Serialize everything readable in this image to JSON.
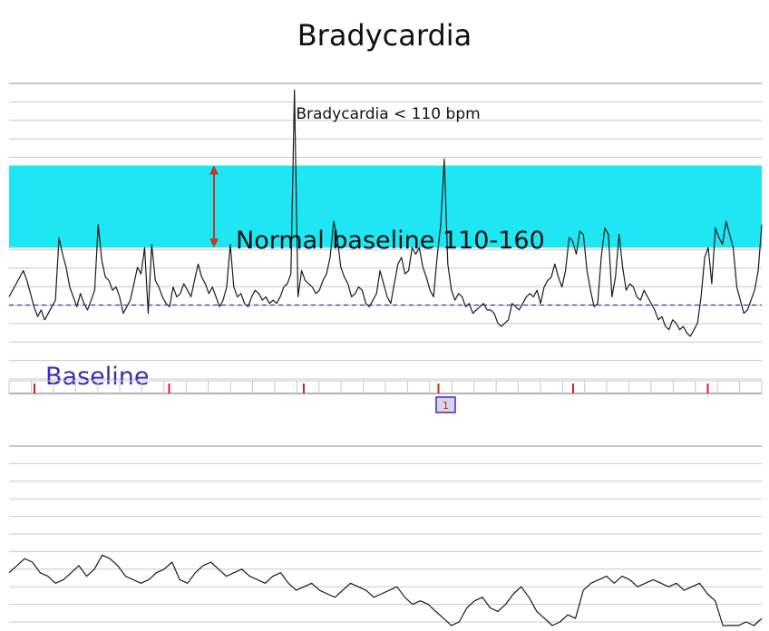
{
  "title": "Bradycardia",
  "colors": {
    "band": "#1ee6f2",
    "arrow": "#c0392b",
    "baseline_line": "#3a2fb0",
    "trace": "#1a1a1a",
    "grid": "#c8c8c8",
    "tick": "#d62020"
  },
  "chart_data": [
    {
      "type": "line",
      "title": "Bradycardia < 110 bpm",
      "band": {
        "low": 110,
        "high": 160,
        "label": "Normal baseline 110-160"
      },
      "baseline": {
        "value": 75,
        "label": "Baseline"
      },
      "marker_label": "1",
      "ylim": [
        30,
        210
      ],
      "grid": true,
      "series": [
        {
          "values": [
            80,
            84,
            88,
            92,
            96,
            90,
            82,
            74,
            68,
            72,
            66,
            70,
            74,
            78,
            116,
            106,
            98,
            86,
            80,
            74,
            82,
            76,
            72,
            78,
            84,
            124,
            102,
            92,
            90,
            84,
            86,
            80,
            70,
            74,
            78,
            88,
            98,
            94,
            110,
            70,
            112,
            90,
            86,
            80,
            76,
            74,
            86,
            80,
            82,
            88,
            84,
            80,
            90,
            100,
            92,
            88,
            82,
            86,
            80,
            74,
            78,
            86,
            112,
            86,
            80,
            82,
            76,
            74,
            80,
            84,
            82,
            78,
            80,
            76,
            78,
            76,
            80,
            86,
            88,
            94,
            206,
            80,
            96,
            90,
            88,
            86,
            82,
            84,
            90,
            94,
            104,
            126,
            116,
            98,
            92,
            88,
            80,
            82,
            86,
            84,
            76,
            74,
            78,
            82,
            96,
            88,
            80,
            76,
            88,
            100,
            104,
            94,
            96,
            110,
            106,
            110,
            98,
            92,
            84,
            80,
            104,
            124,
            164,
            100,
            84,
            78,
            82,
            80,
            74,
            76,
            70,
            72,
            74,
            76,
            72,
            72,
            70,
            64,
            62,
            64,
            66,
            76,
            74,
            72,
            76,
            80,
            82,
            80,
            84,
            76,
            86,
            90,
            92,
            100,
            92,
            86,
            96,
            116,
            114,
            106,
            120,
            118,
            96,
            84,
            74,
            76,
            104,
            122,
            118,
            80,
            92,
            118,
            98,
            84,
            88,
            86,
            80,
            78,
            84,
            80,
            76,
            72,
            66,
            68,
            62,
            60,
            66,
            64,
            60,
            62,
            58,
            56,
            60,
            64,
            80,
            104,
            110,
            88,
            122,
            116,
            112,
            126,
            118,
            110,
            86,
            78,
            70,
            72,
            78,
            84,
            96,
            124
          ]
        }
      ]
    },
    {
      "type": "line",
      "ylim": [
        0,
        100
      ],
      "grid": true,
      "series": [
        {
          "values": [
            28,
            32,
            36,
            34,
            28,
            26,
            22,
            24,
            28,
            32,
            26,
            30,
            38,
            36,
            32,
            26,
            24,
            22,
            24,
            28,
            30,
            34,
            24,
            22,
            28,
            32,
            34,
            30,
            26,
            28,
            30,
            26,
            24,
            22,
            26,
            28,
            22,
            18,
            20,
            22,
            18,
            16,
            14,
            18,
            22,
            20,
            18,
            14,
            16,
            18,
            20,
            14,
            10,
            12,
            10,
            6,
            2,
            -2,
            0,
            8,
            12,
            14,
            8,
            6,
            10,
            16,
            20,
            14,
            6,
            2,
            -4,
            0,
            4,
            2,
            18,
            22,
            24,
            26,
            22,
            26,
            24,
            20,
            22,
            24,
            22,
            20,
            22,
            18,
            20,
            22,
            16,
            12,
            -4,
            -2,
            -2,
            0,
            -4,
            2
          ]
        }
      ]
    }
  ]
}
